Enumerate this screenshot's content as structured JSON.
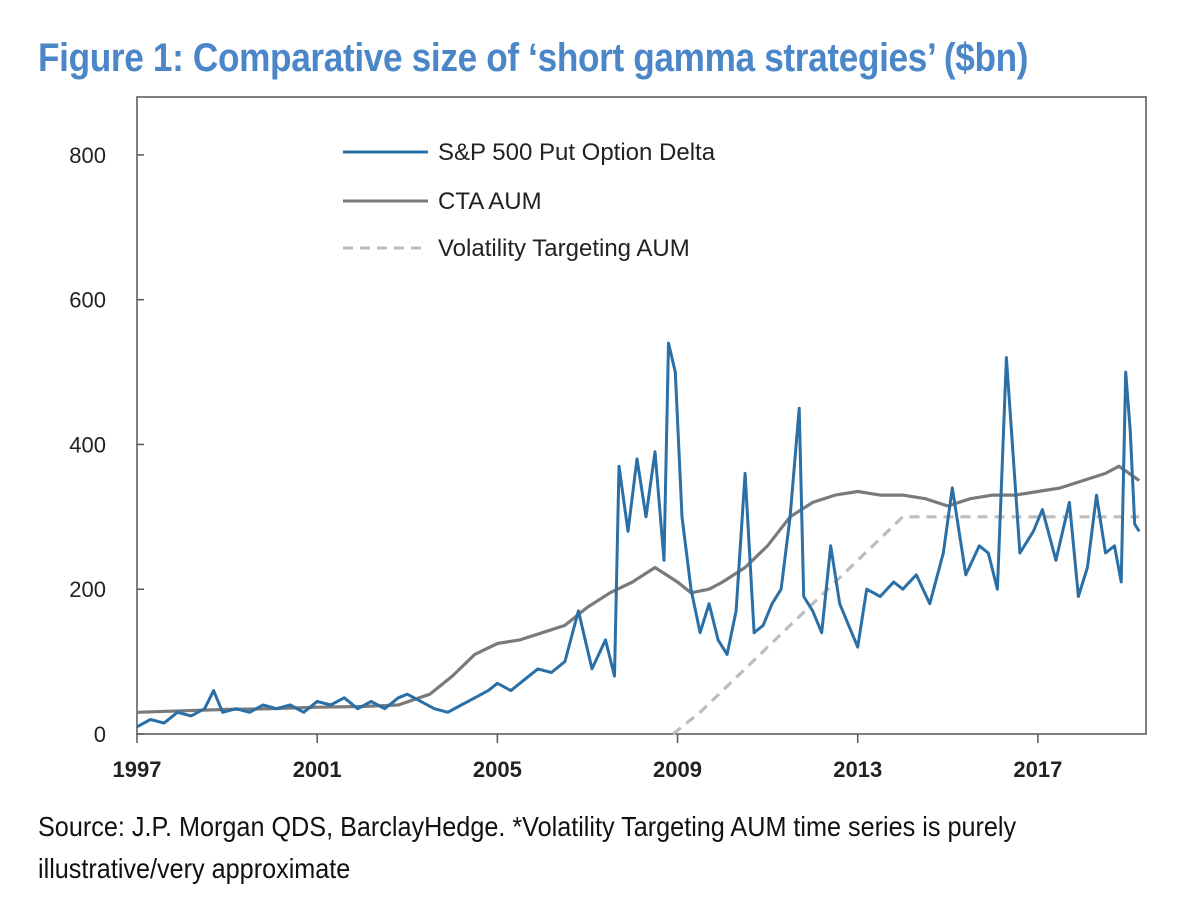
{
  "chart_data": {
    "type": "line",
    "title": "Figure 1: Comparative size of ‘short gamma strategies’ ($bn)",
    "x_ticks": [
      "1997",
      "2001",
      "2005",
      "2009",
      "2013",
      "2017"
    ],
    "y_ticks": [
      "0",
      "200",
      "400",
      "600",
      "800"
    ],
    "xlim": [
      1997,
      2019.4
    ],
    "ylim": [
      0,
      880
    ],
    "grid": false,
    "legend_position": "top-left",
    "series": [
      {
        "name": "S&P 500 Put Option Delta",
        "color": "#2a6fa6",
        "style": "solid",
        "x": [
          1997.0,
          1997.3,
          1997.6,
          1997.9,
          1998.2,
          1998.5,
          1998.7,
          1998.9,
          1999.2,
          1999.5,
          1999.8,
          2000.1,
          2000.4,
          2000.7,
          2001.0,
          2001.3,
          2001.6,
          2001.9,
          2002.2,
          2002.5,
          2002.8,
          2003.0,
          2003.3,
          2003.6,
          2003.9,
          2004.2,
          2004.5,
          2004.8,
          2005.0,
          2005.3,
          2005.6,
          2005.9,
          2006.2,
          2006.5,
          2006.8,
          2007.1,
          2007.4,
          2007.6,
          2007.7,
          2007.9,
          2008.1,
          2008.3,
          2008.5,
          2008.7,
          2008.8,
          2008.95,
          2009.1,
          2009.3,
          2009.5,
          2009.7,
          2009.9,
          2010.1,
          2010.3,
          2010.5,
          2010.7,
          2010.9,
          2011.1,
          2011.3,
          2011.5,
          2011.7,
          2011.8,
          2012.0,
          2012.2,
          2012.4,
          2012.6,
          2012.8,
          2013.0,
          2013.2,
          2013.5,
          2013.8,
          2014.0,
          2014.3,
          2014.6,
          2014.9,
          2015.1,
          2015.4,
          2015.7,
          2015.9,
          2016.1,
          2016.3,
          2016.6,
          2016.9,
          2017.1,
          2017.4,
          2017.7,
          2017.9,
          2018.1,
          2018.3,
          2018.5,
          2018.7,
          2018.85,
          2018.95,
          2019.05,
          2019.15,
          2019.25
        ],
        "values": [
          10,
          20,
          15,
          30,
          25,
          35,
          60,
          30,
          35,
          30,
          40,
          35,
          40,
          30,
          45,
          40,
          50,
          35,
          45,
          35,
          50,
          55,
          45,
          35,
          30,
          40,
          50,
          60,
          70,
          60,
          75,
          90,
          85,
          100,
          170,
          90,
          130,
          80,
          370,
          280,
          380,
          300,
          390,
          240,
          540,
          500,
          300,
          200,
          140,
          180,
          130,
          110,
          170,
          360,
          140,
          150,
          180,
          200,
          300,
          450,
          190,
          170,
          140,
          260,
          180,
          150,
          120,
          200,
          190,
          210,
          200,
          220,
          180,
          250,
          340,
          220,
          260,
          250,
          200,
          520,
          250,
          280,
          310,
          240,
          320,
          190,
          230,
          330,
          250,
          260,
          210,
          500,
          420,
          290,
          280
        ]
      },
      {
        "name": "CTA AUM",
        "color": "#7a7a7a",
        "style": "solid",
        "x": [
          1997.0,
          1998.0,
          1999.0,
          2000.0,
          2001.0,
          2002.0,
          2002.8,
          2003.5,
          2004.0,
          2004.5,
          2005.0,
          2005.5,
          2006.0,
          2006.5,
          2007.0,
          2007.5,
          2008.0,
          2008.5,
          2009.0,
          2009.3,
          2009.7,
          2010.0,
          2010.5,
          2011.0,
          2011.5,
          2012.0,
          2012.5,
          2013.0,
          2013.5,
          2014.0,
          2014.5,
          2015.0,
          2015.5,
          2016.0,
          2016.5,
          2017.0,
          2017.5,
          2018.0,
          2018.5,
          2018.8,
          2019.25
        ],
        "values": [
          30,
          32,
          34,
          35,
          37,
          38,
          40,
          55,
          80,
          110,
          125,
          130,
          140,
          150,
          175,
          195,
          210,
          230,
          210,
          195,
          200,
          210,
          230,
          260,
          300,
          320,
          330,
          335,
          330,
          330,
          325,
          315,
          325,
          330,
          330,
          335,
          340,
          350,
          360,
          370,
          350
        ]
      },
      {
        "name": "Volatility Targeting AUM",
        "color": "#bdbdbd",
        "style": "dashed",
        "x": [
          2008.9,
          2009.5,
          2010.0,
          2010.5,
          2011.0,
          2011.5,
          2012.0,
          2012.5,
          2013.0,
          2013.5,
          2014.0,
          2015.0,
          2016.0,
          2017.0,
          2018.0,
          2019.25
        ],
        "values": [
          0,
          30,
          60,
          90,
          120,
          150,
          180,
          210,
          240,
          270,
          300,
          300,
          300,
          300,
          300,
          300
        ]
      }
    ]
  },
  "source_note": "Source: J.P. Morgan QDS, BarclayHedge. *Volatility Targeting AUM time series is purely illustrative/very approximate"
}
